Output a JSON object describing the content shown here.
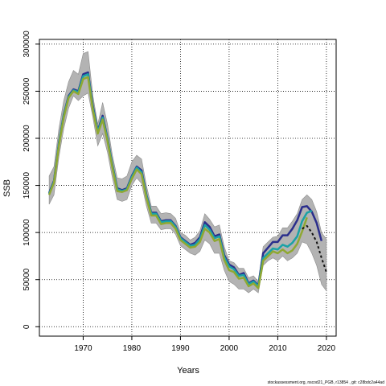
{
  "chart_data": {
    "type": "line",
    "xlabel": "Years",
    "ylabel": "SSB",
    "xlim": [
      1961,
      2022
    ],
    "ylim": [
      -10000,
      305000
    ],
    "x_ticks": [
      1970,
      1980,
      1990,
      2000,
      2010,
      2020
    ],
    "y_ticks": [
      0,
      50000,
      100000,
      150000,
      200000,
      250000,
      300000
    ],
    "grid": "dotted",
    "uncertainty_band": {
      "color": "#b3b3b3",
      "x": [
        1963,
        1964,
        1965,
        1966,
        1967,
        1968,
        1969,
        1970,
        1971,
        1972,
        1973,
        1974,
        1975,
        1976,
        1977,
        1978,
        1979,
        1980,
        1981,
        1982,
        1983,
        1984,
        1985,
        1986,
        1987,
        1988,
        1989,
        1990,
        1991,
        1992,
        1993,
        1994,
        1995,
        1996,
        1997,
        1998,
        1999,
        2000,
        2001,
        2002,
        2003,
        2004,
        2005,
        2006,
        2007,
        2008,
        2009,
        2010,
        2011,
        2012,
        2013,
        2014,
        2015,
        2016,
        2017,
        2018,
        2019,
        2020
      ],
      "lower": [
        130000,
        140000,
        180000,
        210000,
        232000,
        245000,
        240000,
        245000,
        248000,
        222000,
        192000,
        205000,
        185000,
        158000,
        135000,
        133000,
        135000,
        150000,
        158000,
        152000,
        128000,
        110000,
        110000,
        103000,
        104000,
        104000,
        98000,
        86000,
        82000,
        78000,
        76000,
        80000,
        92000,
        88000,
        78000,
        78000,
        60000,
        48000,
        45000,
        40000,
        40000,
        36000,
        40000,
        36000,
        65000,
        70000,
        73000,
        70000,
        75000,
        70000,
        73000,
        78000,
        90000,
        88000,
        78000,
        65000,
        45000,
        38000
      ],
      "upper": [
        160000,
        170000,
        210000,
        240000,
        260000,
        272000,
        268000,
        290000,
        292000,
        245000,
        215000,
        238000,
        215000,
        182000,
        158000,
        157000,
        160000,
        175000,
        182000,
        178000,
        150000,
        128000,
        128000,
        120000,
        121000,
        120000,
        115000,
        100000,
        97000,
        92000,
        95000,
        102000,
        120000,
        114000,
        106000,
        108000,
        85000,
        70000,
        68000,
        62000,
        62000,
        52000,
        54000,
        48000,
        85000,
        90000,
        95000,
        96000,
        105000,
        105000,
        112000,
        120000,
        135000,
        140000,
        135000,
        122000,
        100000,
        93000
      ]
    },
    "series": [
      {
        "color": "#2b2e8c",
        "x": [
          1963,
          1964,
          1965,
          1966,
          1967,
          1968,
          1969,
          1970,
          1971,
          1972,
          1973,
          1974,
          1975,
          1976,
          1977,
          1978,
          1979,
          1980,
          1981,
          1982,
          1983,
          1984,
          1985,
          1986,
          1987,
          1988,
          1989,
          1990,
          1991,
          1992,
          1993,
          1994,
          1995,
          1996,
          1997,
          1998,
          1999,
          2000,
          2001,
          2002,
          2003,
          2004,
          2005,
          2006,
          2007,
          2008,
          2009,
          2010,
          2011,
          2012,
          2013,
          2014,
          2015,
          2016,
          2017,
          2018,
          2019
        ],
        "y": [
          142000,
          155000,
          195000,
          225000,
          245000,
          252000,
          250000,
          268000,
          270000,
          234000,
          208000,
          224000,
          200000,
          172000,
          147000,
          145000,
          147000,
          160000,
          170000,
          166000,
          140000,
          121000,
          121000,
          112000,
          113000,
          113000,
          107000,
          95000,
          91000,
          87000,
          89000,
          95000,
          111000,
          106000,
          96000,
          98000,
          76000,
          66000,
          63000,
          55000,
          57000,
          46000,
          49000,
          44000,
          78000,
          84000,
          90000,
          90000,
          97000,
          97000,
          104000,
          113000,
          127000,
          128000,
          122000,
          110000,
          91000
        ]
      },
      {
        "color": "#1aa2a6",
        "x": [
          1963,
          1964,
          1965,
          1966,
          1967,
          1968,
          1969,
          1970,
          1971,
          1972,
          1973,
          1974,
          1975,
          1976,
          1977,
          1978,
          1979,
          1980,
          1981,
          1982,
          1983,
          1984,
          1985,
          1986,
          1987,
          1988,
          1989,
          1990,
          1991,
          1992,
          1993,
          1994,
          1995,
          1996,
          1997,
          1998,
          1999,
          2000,
          2001,
          2002,
          2003,
          2004,
          2005,
          2006,
          2007,
          2008,
          2009,
          2010,
          2011,
          2012,
          2013,
          2014,
          2015,
          2016,
          2017
        ],
        "y": [
          141000,
          154000,
          194000,
          224000,
          244000,
          251000,
          249000,
          266000,
          268000,
          232000,
          207000,
          222000,
          199000,
          171000,
          146000,
          144000,
          146000,
          159000,
          169000,
          164000,
          139000,
          120000,
          120000,
          111000,
          112000,
          112000,
          106000,
          94000,
          90000,
          86000,
          87000,
          93000,
          108000,
          103000,
          94000,
          96000,
          74000,
          64000,
          61000,
          54000,
          55000,
          45000,
          48000,
          43000,
          73000,
          78000,
          83000,
          82000,
          87000,
          85000,
          89000,
          96000,
          112000,
          121000,
          123000
        ]
      },
      {
        "color": "#8fa832",
        "x": [
          1963,
          1964,
          1965,
          1966,
          1967,
          1968,
          1969,
          1970,
          1971,
          1972,
          1973,
          1974,
          1975,
          1976,
          1977,
          1978,
          1979,
          1980,
          1981,
          1982,
          1983,
          1984,
          1985,
          1986,
          1987,
          1988,
          1989,
          1990,
          1991,
          1992,
          1993,
          1994,
          1995,
          1996,
          1997,
          1998,
          1999,
          2000,
          2001,
          2002,
          2003,
          2004,
          2005,
          2006,
          2007,
          2008,
          2009,
          2010,
          2011,
          2012,
          2013,
          2014,
          2015,
          2016
        ],
        "y": [
          140000,
          153000,
          192000,
          222000,
          243000,
          250000,
          247000,
          263000,
          265000,
          230000,
          205000,
          220000,
          197000,
          169000,
          144000,
          143000,
          145000,
          157000,
          167000,
          162000,
          137000,
          118000,
          118000,
          109000,
          110000,
          110000,
          104000,
          92000,
          88000,
          84000,
          85000,
          90000,
          104000,
          100000,
          91000,
          93000,
          71000,
          60000,
          58000,
          51000,
          52000,
          43000,
          46000,
          41000,
          70000,
          75000,
          80000,
          78000,
          82000,
          78000,
          81000,
          88000,
          101000,
          116000
        ]
      },
      {
        "color": "#111111",
        "dashed": true,
        "x": [
          2015,
          2016,
          2017,
          2018,
          2019,
          2020
        ],
        "y": [
          104000,
          107000,
          100000,
          90000,
          73000,
          58000
        ]
      }
    ]
  },
  "footnote": "stockassessment.org, nscod21_PGB, r13854 , git: c28bdc2a44ad"
}
